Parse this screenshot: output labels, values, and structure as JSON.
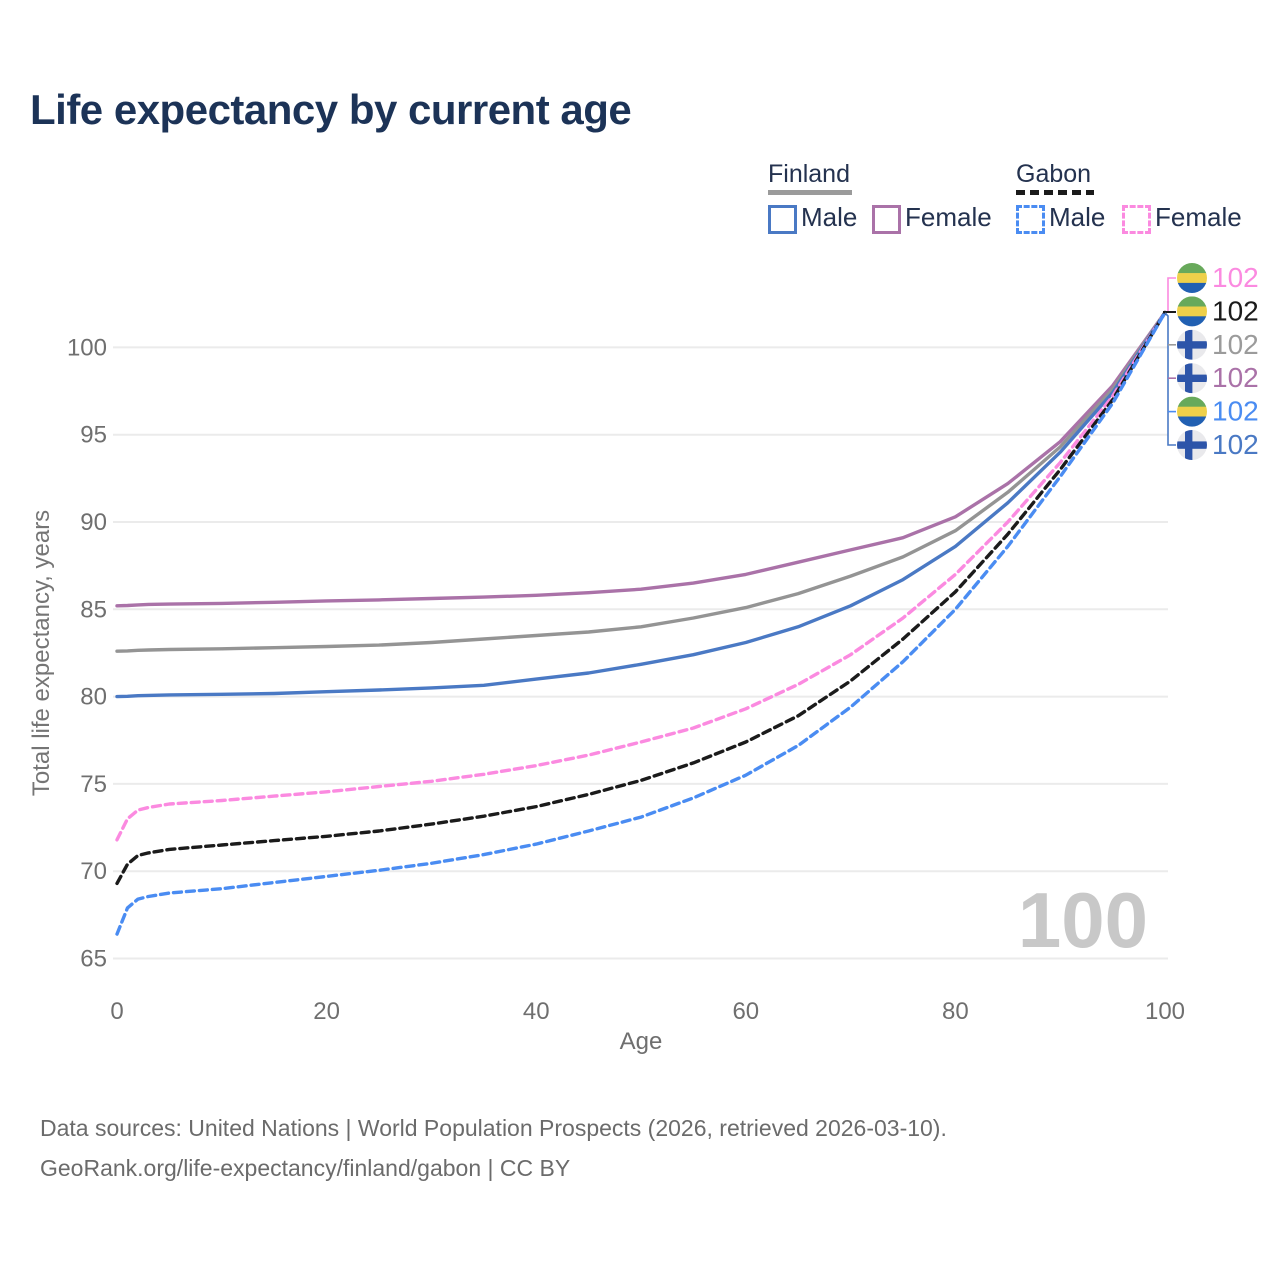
{
  "title": "Life expectancy by current age",
  "watermark_age": "100",
  "legend": {
    "groups": [
      {
        "name": "Finland",
        "line_style": "solid",
        "underline_color": "#9b9b9b",
        "items": [
          {
            "label": "Male",
            "color": "#4a79c4"
          },
          {
            "label": "Female",
            "color": "#aa72a8"
          }
        ]
      },
      {
        "name": "Gabon",
        "line_style": "dashed",
        "underline_color": "#1b1b1b",
        "items": [
          {
            "label": "Male",
            "color": "#4a8cf2"
          },
          {
            "label": "Female",
            "color": "#fb8ae0"
          }
        ]
      }
    ]
  },
  "chart_data": {
    "type": "line",
    "title": "Life expectancy by current age",
    "xlabel": "Age",
    "ylabel": "Total life expectancy, years",
    "xticks": [
      0,
      20,
      40,
      60,
      80,
      100
    ],
    "yticks": [
      65,
      70,
      75,
      80,
      85,
      90,
      95,
      100
    ],
    "xlim": [
      0,
      100
    ],
    "ylim": [
      64,
      103.5
    ],
    "grid": "horizontal",
    "x": [
      0,
      1,
      2,
      3,
      5,
      10,
      15,
      20,
      25,
      30,
      35,
      40,
      45,
      50,
      55,
      60,
      65,
      70,
      75,
      80,
      85,
      90,
      95,
      100
    ],
    "series": [
      {
        "name": "Finland Female",
        "country": "Finland",
        "sex": "Female",
        "dash": false,
        "color": "#aa72a8",
        "values": [
          85.2,
          85.22,
          85.25,
          85.28,
          85.3,
          85.34,
          85.4,
          85.48,
          85.54,
          85.62,
          85.7,
          85.8,
          85.95,
          86.15,
          86.5,
          87.0,
          87.7,
          88.4,
          89.1,
          90.3,
          92.2,
          94.6,
          97.8,
          102
        ]
      },
      {
        "name": "Finland",
        "country": "Finland",
        "sex": "All",
        "dash": false,
        "color": "#949494",
        "values": [
          82.6,
          82.62,
          82.65,
          82.67,
          82.7,
          82.74,
          82.8,
          82.87,
          82.95,
          83.1,
          83.3,
          83.5,
          83.7,
          84.0,
          84.5,
          85.1,
          85.9,
          86.9,
          88.0,
          89.5,
          91.7,
          94.3,
          97.6,
          102
        ]
      },
      {
        "name": "Finland Male",
        "country": "Finland",
        "sex": "Male",
        "dash": false,
        "color": "#4a79c4",
        "values": [
          80.0,
          80.02,
          80.05,
          80.07,
          80.1,
          80.13,
          80.18,
          80.28,
          80.38,
          80.5,
          80.65,
          81.0,
          81.35,
          81.85,
          82.4,
          83.1,
          84.0,
          85.2,
          86.7,
          88.6,
          91.1,
          94.0,
          97.4,
          102
        ]
      },
      {
        "name": "Gabon Female",
        "country": "Gabon",
        "sex": "Female",
        "dash": true,
        "color": "#fb8ae0",
        "values": [
          71.8,
          73.0,
          73.5,
          73.65,
          73.85,
          74.05,
          74.3,
          74.55,
          74.85,
          75.15,
          75.55,
          76.05,
          76.65,
          77.4,
          78.2,
          79.3,
          80.7,
          82.4,
          84.5,
          87.0,
          90.0,
          93.4,
          97.2,
          102
        ]
      },
      {
        "name": "Gabon",
        "country": "Gabon",
        "sex": "All",
        "dash": true,
        "color": "#1b1b1b",
        "values": [
          69.3,
          70.4,
          70.9,
          71.05,
          71.25,
          71.5,
          71.75,
          72.0,
          72.3,
          72.7,
          73.15,
          73.7,
          74.4,
          75.2,
          76.2,
          77.4,
          78.9,
          80.9,
          83.3,
          86.0,
          89.3,
          93.0,
          97.0,
          102
        ]
      },
      {
        "name": "Gabon Male",
        "country": "Gabon",
        "sex": "Male",
        "dash": true,
        "color": "#4a8cf2",
        "values": [
          66.4,
          67.9,
          68.4,
          68.55,
          68.75,
          69.0,
          69.35,
          69.7,
          70.05,
          70.45,
          70.95,
          71.55,
          72.3,
          73.1,
          74.2,
          75.5,
          77.2,
          79.4,
          82.0,
          85.0,
          88.6,
          92.6,
          96.8,
          102
        ]
      }
    ],
    "end_labels": [
      {
        "flag": "gabon",
        "series": "Gabon Female",
        "value": "102",
        "color": "#fb8ae0"
      },
      {
        "flag": "gabon",
        "series": "Gabon",
        "value": "102",
        "color": "#1b1b1b"
      },
      {
        "flag": "finland",
        "series": "Finland",
        "value": "102",
        "color": "#9b9b9b"
      },
      {
        "flag": "finland",
        "series": "Finland Female",
        "value": "102",
        "color": "#aa72a8"
      },
      {
        "flag": "gabon",
        "series": "Gabon Male",
        "value": "102",
        "color": "#4a8cf2"
      },
      {
        "flag": "finland",
        "series": "Finland Male",
        "value": "102",
        "color": "#4a79c4"
      }
    ]
  },
  "footer": {
    "line1": "Data sources: United Nations | World Population Prospects (2026, retrieved 2026-03-10).",
    "line2": "GeoRank.org/life-expectancy/finland/gabon | CC BY"
  }
}
